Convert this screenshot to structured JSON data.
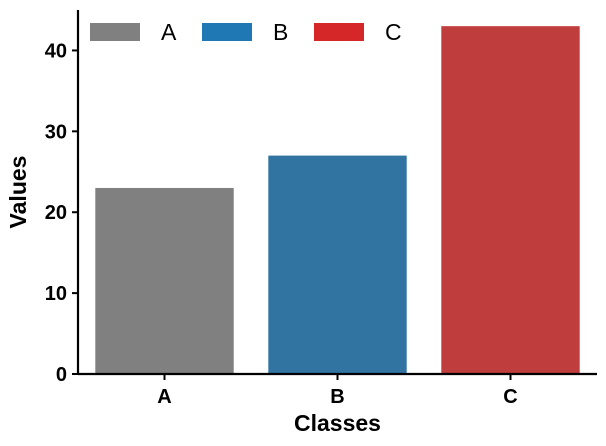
{
  "chart_data": {
    "type": "bar",
    "categories": [
      "A",
      "B",
      "C"
    ],
    "values": [
      23,
      27,
      43
    ],
    "colors": [
      "#808080",
      "#3274a1",
      "#c03d3e"
    ],
    "title": "",
    "xlabel": "Classes",
    "ylabel": "Values",
    "ylim": [
      0,
      45
    ],
    "yticks": [
      0,
      10,
      20,
      30,
      40
    ],
    "grid": false,
    "legend": {
      "placement": "top-left",
      "entries": [
        {
          "label": "A",
          "color": "#808080"
        },
        {
          "label": "B",
          "color": "#1f77b4"
        },
        {
          "label": "C",
          "color": "#d62728"
        }
      ]
    }
  }
}
